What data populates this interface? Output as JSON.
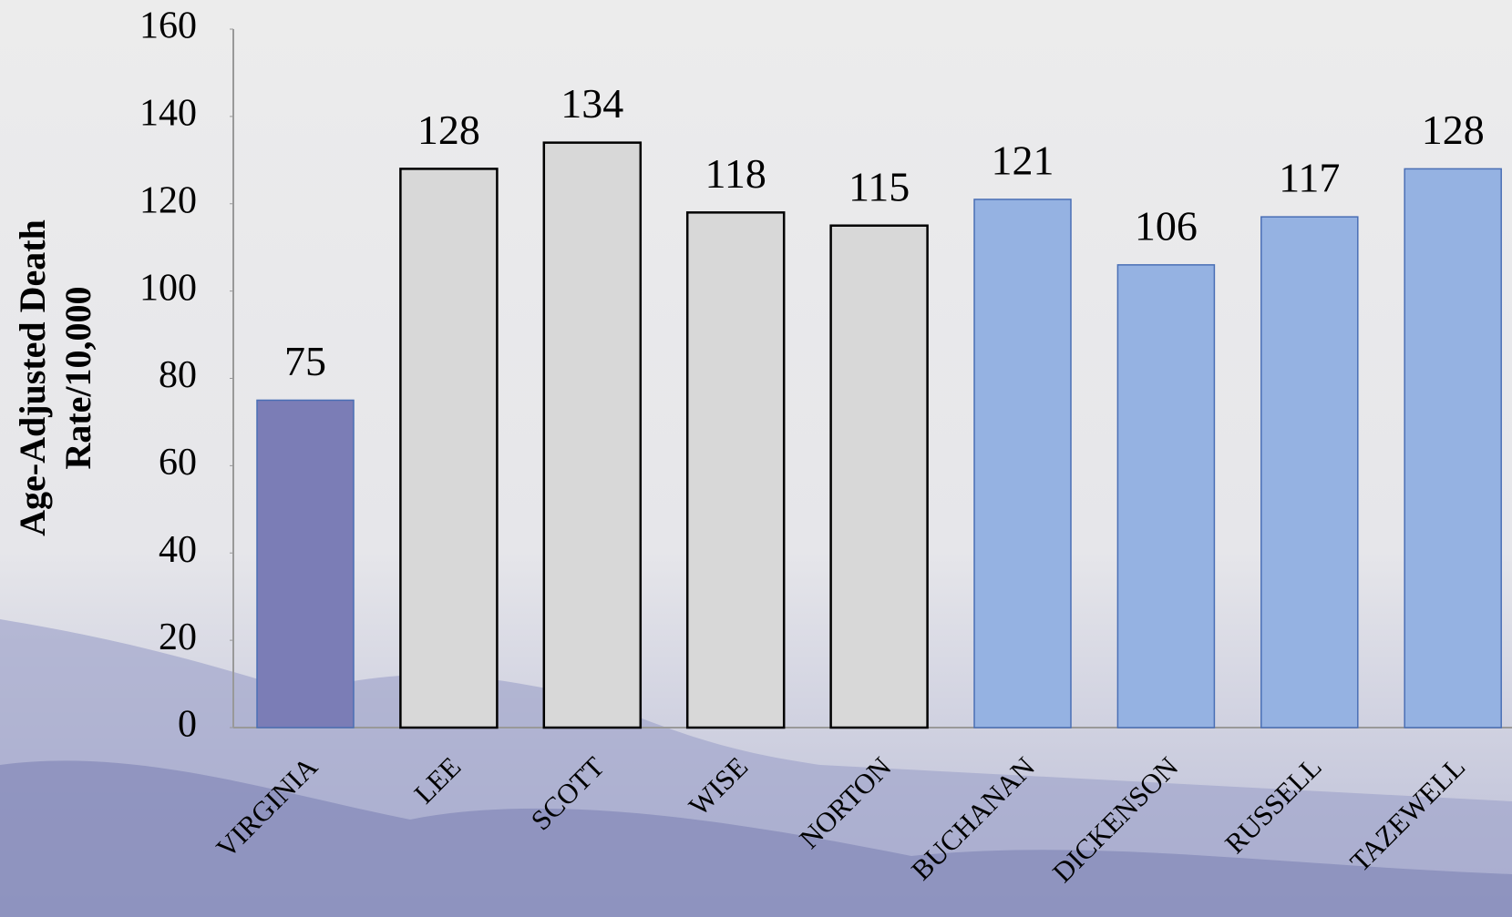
{
  "chart_data": {
    "type": "bar",
    "ylabel": [
      "Age-Adjusted Death",
      "Rate/10,000"
    ],
    "categories": [
      "VIRGINIA",
      "LEE",
      "SCOTT",
      "WISE",
      "NORTON",
      "BUCHANAN",
      "DICKENSON",
      "RUSSELL",
      "TAZEWELL"
    ],
    "values": [
      75,
      128,
      134,
      118,
      115,
      121,
      106,
      117,
      128
    ],
    "colors": [
      "#7b7db6",
      "#d8d8d8",
      "#d8d8d8",
      "#d8d8d8",
      "#d8d8d8",
      "#95b2e2",
      "#95b2e2",
      "#95b2e2",
      "#95b2e2"
    ],
    "ylim": [
      0,
      160
    ],
    "yticks": [
      0,
      20,
      40,
      60,
      80,
      100,
      120,
      140,
      160
    ]
  }
}
